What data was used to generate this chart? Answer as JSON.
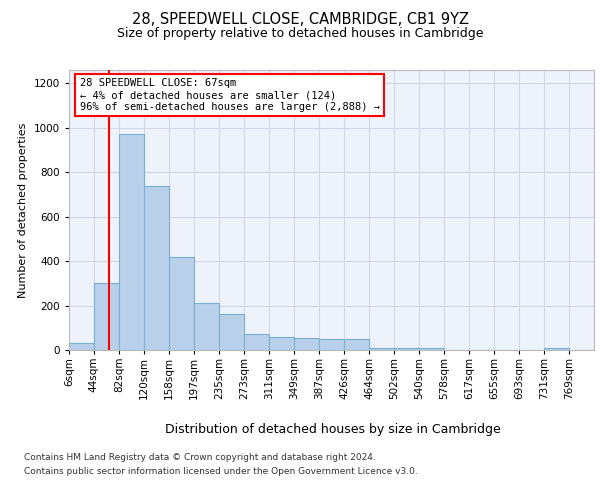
{
  "title1": "28, SPEEDWELL CLOSE, CAMBRIDGE, CB1 9YZ",
  "title2": "Size of property relative to detached houses in Cambridge",
  "xlabel": "Distribution of detached houses by size in Cambridge",
  "ylabel": "Number of detached properties",
  "footer1": "Contains HM Land Registry data © Crown copyright and database right 2024.",
  "footer2": "Contains public sector information licensed under the Open Government Licence v3.0.",
  "annotation_title": "28 SPEEDWELL CLOSE: 67sqm",
  "annotation_line1": "← 4% of detached houses are smaller (124)",
  "annotation_line2": "96% of semi-detached houses are larger (2,888) →",
  "property_size": 67,
  "bar_labels": [
    "6sqm",
    "44sqm",
    "82sqm",
    "120sqm",
    "158sqm",
    "197sqm",
    "235sqm",
    "273sqm",
    "311sqm",
    "349sqm",
    "387sqm",
    "426sqm",
    "464sqm",
    "502sqm",
    "540sqm",
    "578sqm",
    "617sqm",
    "655sqm",
    "693sqm",
    "731sqm",
    "769sqm"
  ],
  "bar_values": [
    30,
    300,
    970,
    740,
    420,
    210,
    160,
    70,
    60,
    55,
    50,
    50,
    10,
    10,
    10,
    2,
    2,
    2,
    2,
    10,
    2
  ],
  "bar_edges": [
    6,
    44,
    82,
    120,
    158,
    197,
    235,
    273,
    311,
    349,
    387,
    426,
    464,
    502,
    540,
    578,
    617,
    655,
    693,
    731,
    769
  ],
  "bar_color": "#b8d0ea",
  "bar_edge_color": "#7aafd4",
  "red_line_x": 67,
  "ylim": [
    0,
    1260
  ],
  "yticks": [
    0,
    200,
    400,
    600,
    800,
    1000,
    1200
  ],
  "grid_color": "#d0d8e8",
  "background_color": "#edf2fb",
  "title1_fontsize": 10.5,
  "title2_fontsize": 9,
  "ylabel_fontsize": 8,
  "xlabel_fontsize": 9,
  "tick_fontsize": 7.5,
  "ann_fontsize": 7.5,
  "footer_fontsize": 6.5
}
